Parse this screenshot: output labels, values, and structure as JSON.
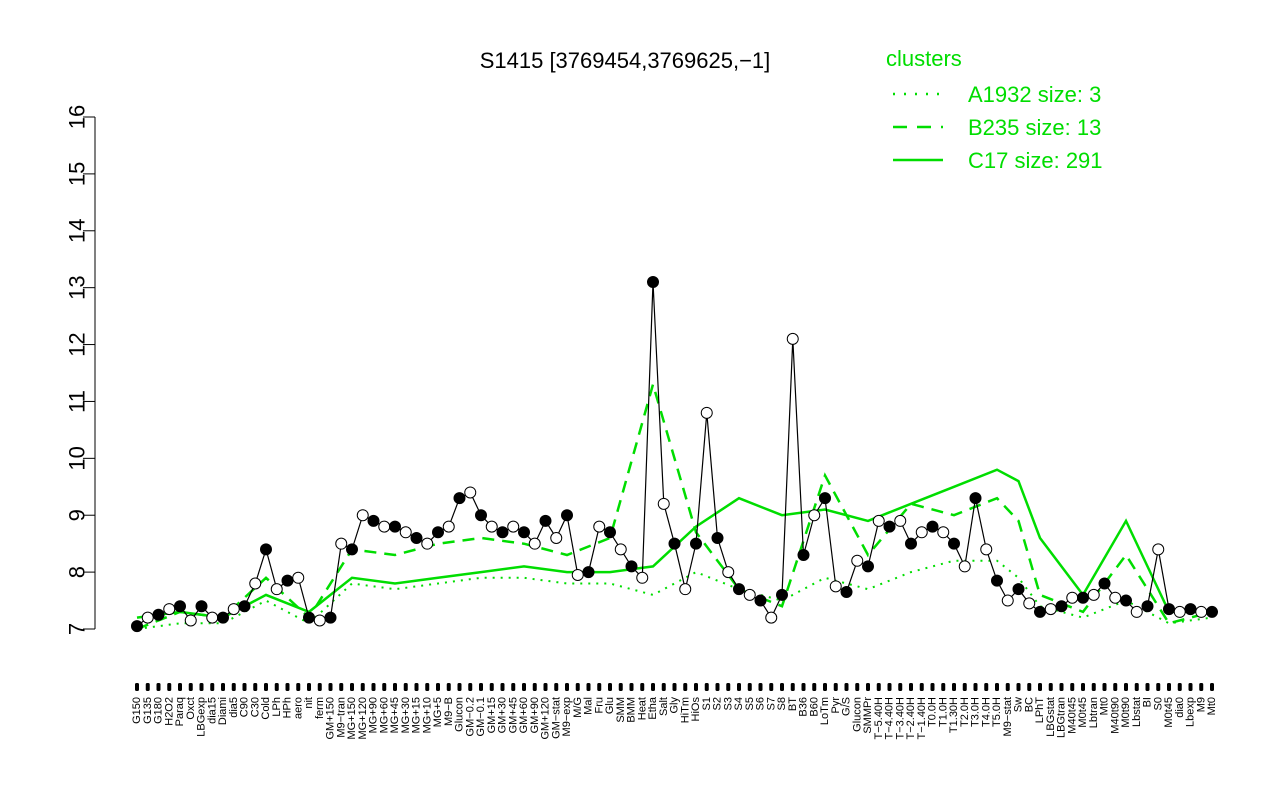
{
  "chart_data": {
    "type": "line",
    "title": "S1415 [3769454,3769625,−1]",
    "xlabel": "",
    "ylabel": "",
    "ylim": [
      7,
      16
    ],
    "yticks": [
      7,
      8,
      9,
      10,
      11,
      12,
      13,
      14,
      15,
      16
    ],
    "xtick_labels": [
      "G150",
      "G135",
      "G180",
      "H2O2",
      "Paraq",
      "Oxct",
      "LBGexp",
      "dia15",
      "Diami",
      "dia5",
      "C90",
      "C30",
      "Cold",
      "LPh",
      "HPh",
      "aero",
      "nit",
      "ferm",
      "GM+150",
      "M9−tran",
      "MG+150",
      "MG+120",
      "MG+90",
      "MG+60",
      "MG+45",
      "MG+30",
      "MG+15",
      "MG+10",
      "MG+5",
      "M9−B",
      "Glucon",
      "GM−0.2",
      "GM−0.1",
      "GM+15",
      "GM+30",
      "GM+45",
      "GM+60",
      "GM+90",
      "GM+120",
      "GM−stat",
      "M9−exp",
      "M/G",
      "Mal",
      "Fru",
      "Glu",
      "SMM",
      "BMM",
      "Heat",
      "Etha",
      "Salt",
      "Gly",
      "HiTm",
      "HiOs",
      "S1",
      "S2",
      "S3",
      "S4",
      "S5",
      "S6",
      "S7",
      "S8",
      "BT",
      "B36",
      "B60",
      "LoTm",
      "Pyr",
      "G/S",
      "Glucon",
      "SMMPr",
      "T−5.40H",
      "T−4.40H",
      "T−3.40H",
      "T−2.40H",
      "T−1.40H",
      "T0.0H",
      "T1.0H",
      "T1.30H",
      "T2.0H",
      "T3.0H",
      "T4.0H",
      "T5.0H",
      "M9−stat",
      "Sw",
      "BC",
      "LPhT",
      "LBGstat",
      "LBGtran",
      "M40t45",
      "M0t45",
      "Lbtran",
      "Mt0",
      "M40t90",
      "M0t90",
      "Lbstat",
      "BI",
      "S0",
      "M0t45",
      "dia0",
      "Lbexp",
      "M9",
      "Mt0"
    ],
    "legend": {
      "title": "clusters",
      "placement": "top-right",
      "entries": [
        {
          "label": "A1932 size: 3",
          "style": "dotted"
        },
        {
          "label": "B235 size: 13",
          "style": "dashed"
        },
        {
          "label": "C17 size: 291",
          "style": "solid"
        }
      ]
    },
    "colors": {
      "clusters": "#00dd00",
      "profile_line": "#000000",
      "axis": "#000000"
    },
    "series": [
      {
        "name": "S1415",
        "marker": "circle",
        "x": [
          0,
          1,
          2,
          3,
          4,
          5,
          6,
          7,
          8,
          9,
          10,
          11,
          12,
          13,
          14,
          15,
          16,
          17,
          18,
          19,
          20,
          21,
          22,
          23,
          24,
          25,
          26,
          27,
          28,
          29,
          30,
          31,
          32,
          33,
          34,
          35,
          36,
          37,
          38,
          39,
          40,
          41,
          42,
          43,
          44,
          45,
          46,
          47,
          48,
          49,
          50,
          51,
          52,
          53,
          54,
          55,
          56,
          57,
          58,
          59,
          60,
          61,
          62,
          63,
          64,
          65,
          66,
          67,
          68,
          69,
          70,
          71,
          72,
          73,
          74,
          75,
          76,
          77,
          78,
          79,
          80,
          81,
          82,
          83,
          84,
          85,
          86,
          87,
          88,
          89,
          90,
          91,
          92,
          93,
          94,
          95,
          96,
          97,
          98,
          99,
          100
        ],
        "values": [
          7.05,
          7.2,
          7.25,
          7.35,
          7.4,
          7.15,
          7.4,
          7.2,
          7.2,
          7.35,
          7.4,
          7.8,
          8.4,
          7.7,
          7.85,
          7.9,
          7.2,
          7.15,
          7.2,
          8.5,
          8.4,
          9.0,
          8.9,
          8.8,
          8.8,
          8.7,
          8.6,
          8.5,
          8.7,
          8.8,
          9.3,
          9.4,
          9.0,
          8.8,
          8.7,
          8.8,
          8.7,
          8.5,
          8.9,
          8.6,
          9.0,
          7.95,
          8.0,
          8.8,
          8.7,
          8.4,
          8.1,
          7.9,
          13.1,
          9.2,
          8.5,
          7.7,
          8.5,
          10.8,
          8.6,
          8.0,
          7.7,
          7.6,
          7.5,
          7.2,
          7.6,
          12.1,
          8.3,
          9.0,
          9.3,
          7.75,
          7.65,
          8.2,
          8.1,
          8.9,
          8.8,
          8.9,
          8.5,
          8.7,
          8.8,
          8.7,
          8.5,
          8.1,
          9.3,
          8.4,
          7.85,
          7.5,
          7.7,
          7.45,
          7.3,
          7.35,
          7.4,
          7.55,
          7.55,
          7.6,
          7.8,
          7.55,
          7.5,
          7.3,
          7.4,
          8.4,
          7.35,
          7.3,
          7.35,
          7.3,
          7.3
        ]
      },
      {
        "name": "C17 size: 291",
        "style": "solid",
        "x": [
          0,
          4,
          8,
          12,
          16,
          20,
          24,
          28,
          32,
          36,
          40,
          44,
          48,
          52,
          56,
          60,
          64,
          68,
          72,
          76,
          80,
          82,
          84,
          88,
          92,
          96,
          100
        ],
        "values": [
          7.2,
          7.3,
          7.2,
          7.6,
          7.3,
          7.9,
          7.8,
          7.9,
          8.0,
          8.1,
          8.0,
          8.0,
          8.1,
          8.8,
          9.3,
          9.0,
          9.1,
          8.9,
          9.2,
          9.5,
          9.8,
          9.6,
          8.6,
          7.6,
          8.9,
          7.3,
          7.3
        ]
      },
      {
        "name": "B235 size: 13",
        "style": "dashed",
        "x": [
          0,
          4,
          8,
          12,
          16,
          20,
          24,
          28,
          32,
          36,
          40,
          44,
          48,
          52,
          56,
          60,
          64,
          68,
          72,
          76,
          80,
          82,
          84,
          88,
          92,
          96,
          100
        ],
        "values": [
          7.0,
          7.3,
          7.2,
          7.9,
          7.2,
          8.4,
          8.3,
          8.5,
          8.6,
          8.5,
          8.3,
          8.6,
          11.3,
          8.7,
          7.7,
          7.4,
          9.7,
          8.3,
          9.2,
          9.0,
          9.3,
          8.9,
          7.6,
          7.3,
          8.3,
          7.1,
          7.3
        ]
      },
      {
        "name": "A1932 size: 3",
        "style": "dotted",
        "x": [
          0,
          4,
          8,
          12,
          16,
          20,
          24,
          28,
          32,
          36,
          40,
          44,
          48,
          52,
          56,
          60,
          64,
          68,
          72,
          76,
          80,
          82,
          84,
          88,
          92,
          96,
          100
        ],
        "values": [
          7.0,
          7.1,
          7.1,
          7.5,
          7.1,
          7.8,
          7.7,
          7.8,
          7.9,
          7.9,
          7.8,
          7.8,
          7.6,
          8.0,
          7.7,
          7.5,
          7.9,
          7.7,
          8.0,
          8.2,
          8.2,
          7.9,
          7.4,
          7.2,
          7.5,
          7.1,
          7.2
        ]
      }
    ]
  }
}
